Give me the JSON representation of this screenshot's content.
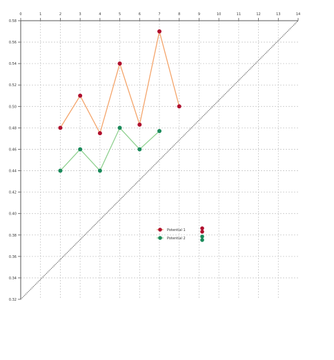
{
  "chart_data": {
    "type": "line",
    "title": "",
    "xlabel": "",
    "ylabel": "",
    "x_ticks": [
      "0",
      "1",
      "2",
      "3",
      "4",
      "5",
      "6",
      "7",
      "8",
      "9",
      "10",
      "11",
      "12",
      "13",
      "14"
    ],
    "y_ticks": [
      "0.58",
      "0.56",
      "0.54",
      "0.52",
      "0.50",
      "0.48",
      "0.46",
      "0.44",
      "0.42",
      "0.40",
      "0.38",
      "0.36",
      "0.34",
      "0.32"
    ],
    "xlim": [
      0,
      14
    ],
    "ylim": [
      0.32,
      0.58
    ],
    "grid": true,
    "legend_position": "center-right",
    "series": [
      {
        "name": "Potential 1",
        "line_color": "#f4a46a",
        "marker_color": "#b0102e",
        "x": [
          2,
          3,
          4,
          5,
          6,
          7,
          8
        ],
        "y": [
          0.48,
          0.51,
          0.475,
          0.54,
          0.483,
          0.57,
          0.5
        ]
      },
      {
        "name": "Potential 2",
        "line_color": "#8fd08f",
        "marker_color": "#1a8a5a",
        "x": [
          2,
          3,
          4,
          5,
          6,
          7
        ],
        "y": [
          0.44,
          0.46,
          0.44,
          0.48,
          0.46,
          0.477
        ]
      }
    ],
    "diagonal": {
      "from": [
        0,
        0.32
      ],
      "to": [
        14,
        0.58
      ],
      "color": "#777777"
    }
  }
}
